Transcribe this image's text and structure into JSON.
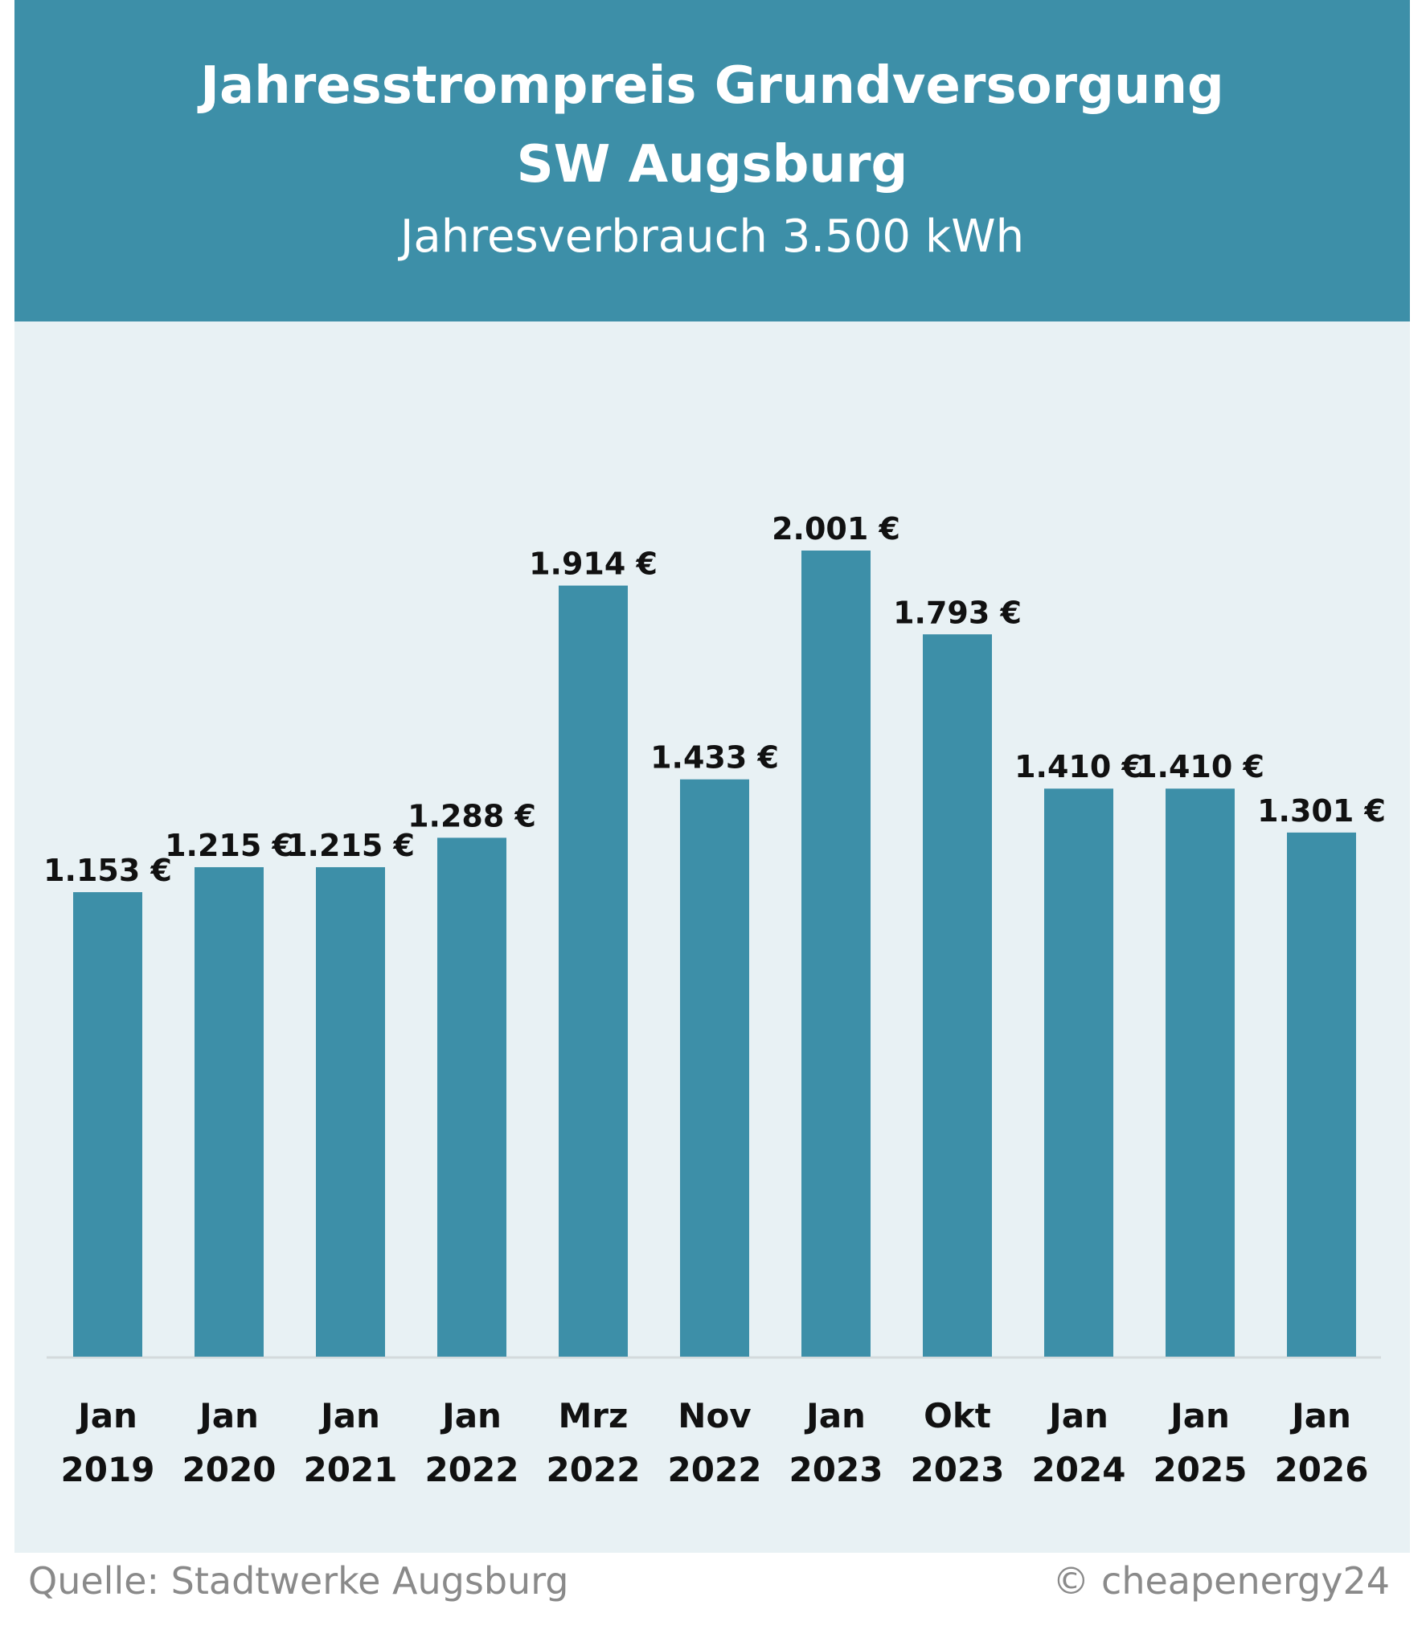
{
  "chart_data": {
    "type": "bar",
    "title": "Jahresstrompreis Grundversorgung",
    "title_line2": "SW Augsburg",
    "subtitle": "Jahresverbrauch 3.500 kWh",
    "categories": [
      [
        "Jan",
        "2019"
      ],
      [
        "Jan",
        "2020"
      ],
      [
        "Jan",
        "2021"
      ],
      [
        "Jan",
        "2022"
      ],
      [
        "Mrz",
        "2022"
      ],
      [
        "Nov",
        "2022"
      ],
      [
        "Jan",
        "2023"
      ],
      [
        "Okt",
        "2023"
      ],
      [
        "Jan",
        "2024"
      ],
      [
        "Jan",
        "2025"
      ],
      [
        "Jan",
        "2026"
      ]
    ],
    "values": [
      1153,
      1215,
      1215,
      1288,
      1914,
      1433,
      2001,
      1793,
      1410,
      1410,
      1301
    ],
    "data_labels": [
      "1.153 €",
      "1.215 €",
      "1.215 €",
      "1.288 €",
      "1.914 €",
      "1.433 €",
      "2.001 €",
      "1.793 €",
      "1.410 €",
      "1.410 €",
      "1.301 €"
    ],
    "xlabel": "",
    "ylabel": "",
    "ylim": [
      0,
      2001
    ],
    "grid": false,
    "colors": {
      "bar": "#3d8fa8",
      "header": "#3d8fa8",
      "background": "#e8f1f4"
    }
  },
  "footer": {
    "source": "Quelle: Stadtwerke Augsburg",
    "copyright": "© cheapenergy24"
  }
}
